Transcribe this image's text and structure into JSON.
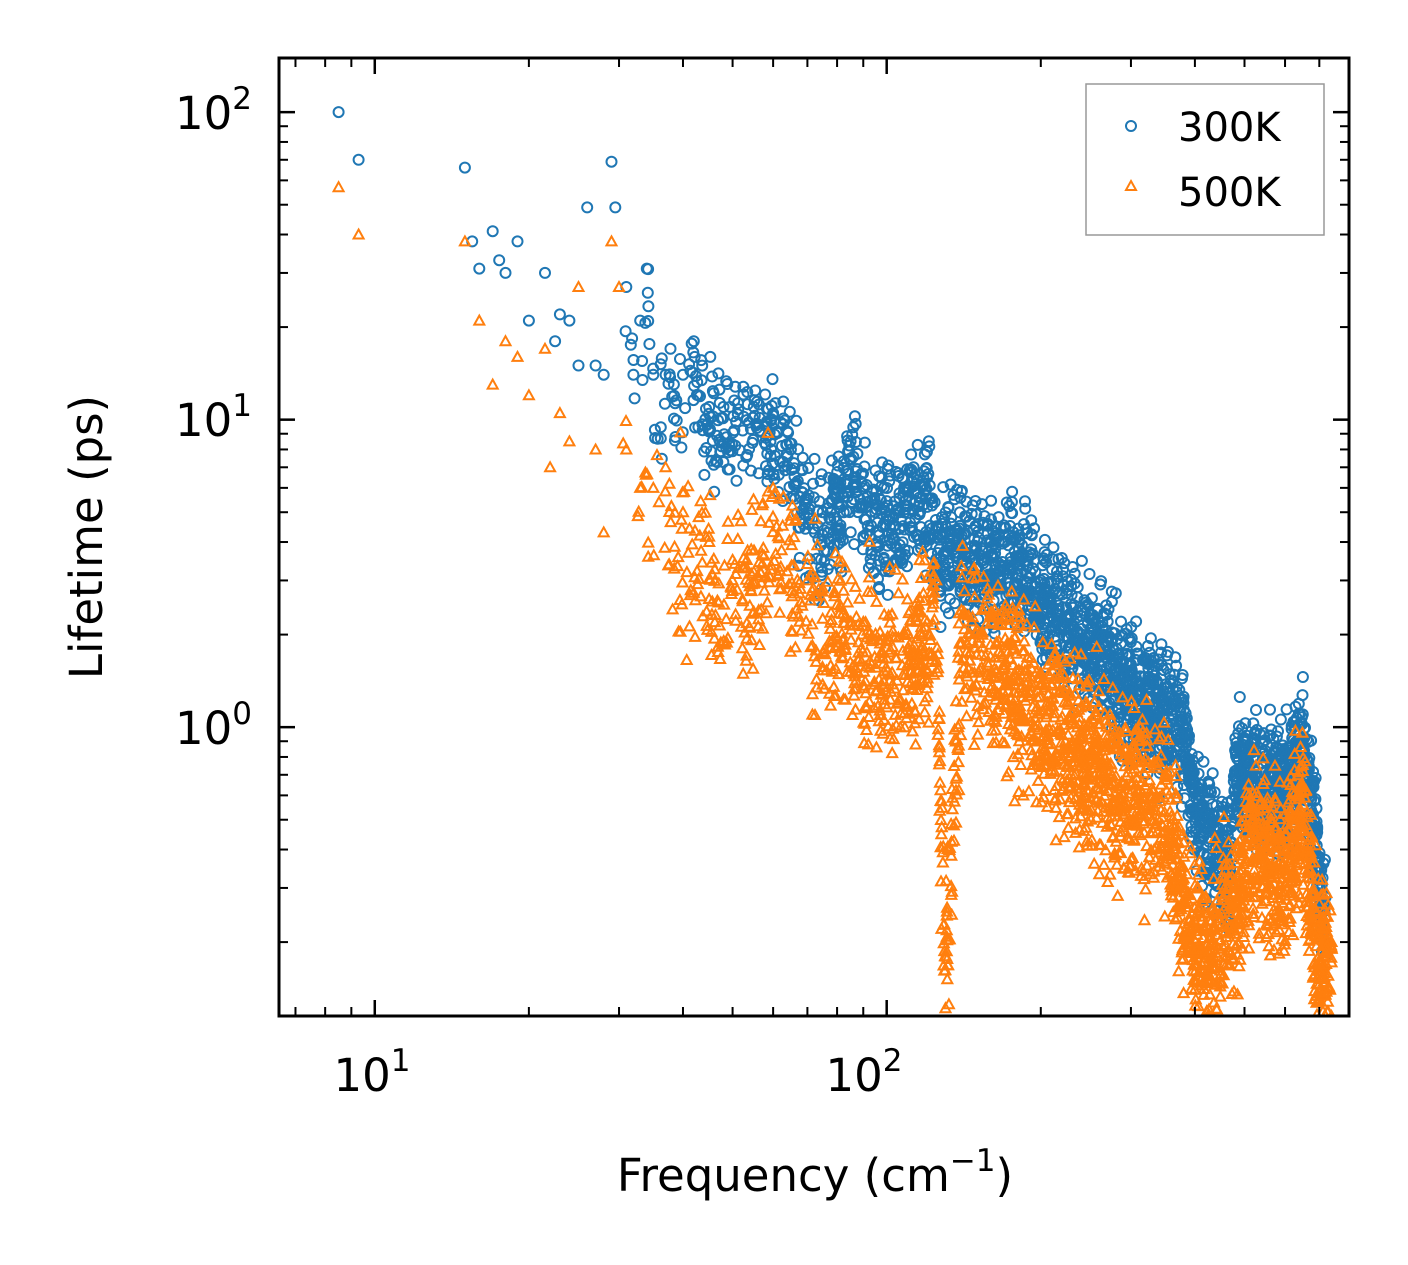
{
  "chart_data": {
    "type": "scatter",
    "title": "",
    "xlabel": {
      "main": "Frequency (cm",
      "sup": "−1",
      "close": ")"
    },
    "ylabel": "Lifetime (ps)",
    "xscale": "log",
    "yscale": "log",
    "xlim": [
      6.5,
      800
    ],
    "ylim": [
      0.115,
      150
    ],
    "x_ticks": [
      {
        "base": "10",
        "exp": "1",
        "value": 10
      },
      {
        "base": "10",
        "exp": "2",
        "value": 100
      }
    ],
    "y_ticks": [
      {
        "base": "10",
        "exp": "0",
        "value": 1
      },
      {
        "base": "10",
        "exp": "1",
        "value": 10
      },
      {
        "base": "10",
        "exp": "2",
        "value": 100
      }
    ],
    "legend_position": "top-right",
    "colors": {
      "s300": "#1f77b4",
      "s500": "#ff7f0e"
    },
    "series": [
      {
        "name": "300K",
        "marker": "circle",
        "points": [
          [
            8.5,
            100
          ],
          [
            9.3,
            70
          ],
          [
            15,
            66
          ],
          [
            15.5,
            38
          ],
          [
            16,
            31
          ],
          [
            17,
            41
          ],
          [
            17.5,
            33
          ],
          [
            18,
            30
          ],
          [
            19,
            38
          ],
          [
            20,
            21
          ],
          [
            21.5,
            30
          ],
          [
            22.5,
            18
          ],
          [
            23,
            22
          ],
          [
            24,
            21
          ],
          [
            25,
            15
          ],
          [
            26,
            49
          ],
          [
            27,
            15
          ],
          [
            28,
            14
          ],
          [
            29,
            69
          ],
          [
            29.5,
            49
          ],
          [
            31,
            27
          ],
          [
            32,
            14
          ],
          [
            33,
            21
          ],
          [
            34,
            31
          ],
          [
            35,
            14
          ],
          [
            37,
            14
          ],
          [
            40,
            14
          ],
          [
            42,
            18
          ],
          [
            45,
            11
          ],
          [
            48,
            11
          ],
          [
            55,
            11
          ],
          [
            60,
            10.5
          ],
          [
            65,
            8
          ],
          [
            70,
            5.5
          ],
          [
            75,
            5
          ],
          [
            80,
            6
          ],
          [
            85,
            8.5
          ],
          [
            95,
            5
          ],
          [
            110,
            6
          ],
          [
            120,
            6.5
          ],
          [
            125,
            4.5
          ],
          [
            140,
            4.2
          ],
          [
            160,
            4.0
          ],
          [
            190,
            3.7
          ],
          [
            200,
            3.0
          ],
          [
            220,
            2.7
          ],
          [
            240,
            2.3
          ],
          [
            270,
            1.9
          ],
          [
            300,
            1.6
          ],
          [
            340,
            1.3
          ],
          [
            380,
            1.2
          ],
          [
            400,
            0.62
          ],
          [
            430,
            0.5
          ],
          [
            470,
            0.42
          ],
          [
            480,
            0.92
          ],
          [
            520,
            0.8
          ],
          [
            560,
            0.78
          ],
          [
            600,
            0.75
          ],
          [
            650,
            1.1
          ],
          [
            690,
            0.45
          ],
          [
            720,
            0.28
          ]
        ]
      },
      {
        "name": "500K",
        "marker": "triangle",
        "points": [
          [
            8.5,
            57
          ],
          [
            9.3,
            40
          ],
          [
            15,
            38
          ],
          [
            16,
            21
          ],
          [
            17,
            13
          ],
          [
            18,
            18
          ],
          [
            19,
            16
          ],
          [
            20,
            12
          ],
          [
            21.5,
            17
          ],
          [
            22,
            7
          ],
          [
            23,
            10.5
          ],
          [
            24,
            8.5
          ],
          [
            25,
            27
          ],
          [
            27,
            8
          ],
          [
            28,
            4.3
          ],
          [
            29,
            38
          ],
          [
            30,
            27
          ],
          [
            31,
            8
          ],
          [
            33,
            6
          ],
          [
            35,
            6
          ],
          [
            37,
            7
          ],
          [
            40,
            5
          ],
          [
            45,
            4
          ],
          [
            50,
            3.5
          ],
          [
            55,
            3.2
          ],
          [
            60,
            6
          ],
          [
            70,
            3
          ],
          [
            80,
            2.5
          ],
          [
            90,
            2.2
          ],
          [
            100,
            1.9
          ],
          [
            115,
            2.2
          ],
          [
            125,
            3.0
          ],
          [
            130,
            0.18
          ],
          [
            140,
            2.4
          ],
          [
            160,
            2.2
          ],
          [
            200,
            1.5
          ],
          [
            250,
            1.0
          ],
          [
            300,
            0.78
          ],
          [
            350,
            0.7
          ],
          [
            380,
            0.35
          ],
          [
            420,
            0.22
          ],
          [
            470,
            0.32
          ],
          [
            520,
            0.55
          ],
          [
            560,
            0.45
          ],
          [
            620,
            0.5
          ],
          [
            650,
            0.72
          ],
          [
            690,
            0.25
          ],
          [
            740,
            0.19
          ]
        ]
      }
    ]
  }
}
